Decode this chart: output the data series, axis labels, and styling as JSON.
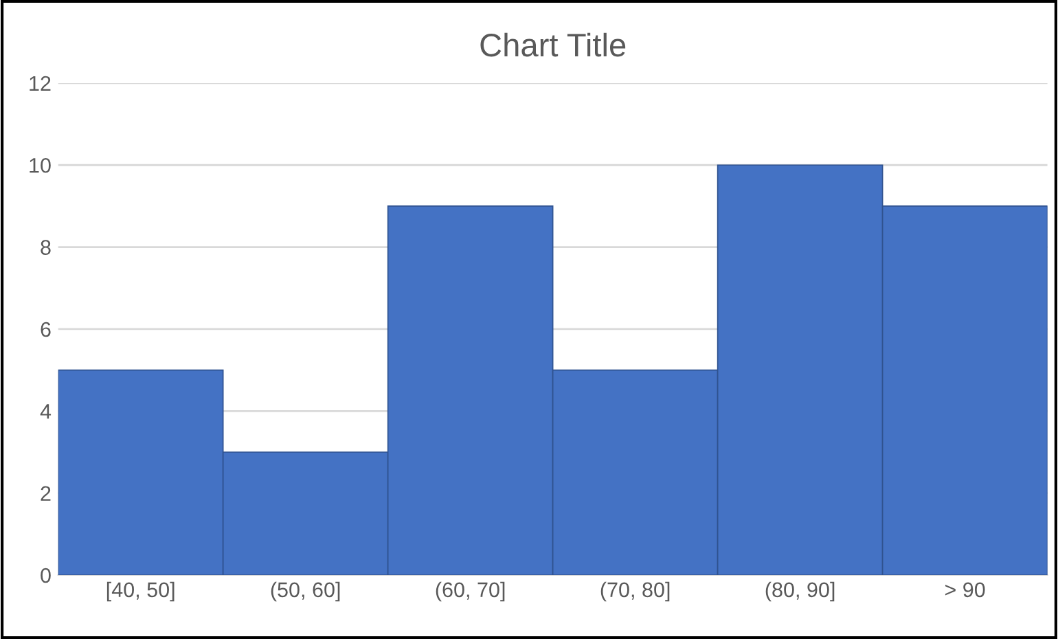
{
  "chart_data": {
    "type": "bar",
    "title": "Chart Title",
    "categories": [
      "[40, 50]",
      "(50, 60]",
      "(60, 70]",
      "(70, 80]",
      "(80, 90]",
      "> 90"
    ],
    "values": [
      5,
      3,
      9,
      5,
      10,
      9
    ],
    "color": "#4472c4",
    "ylim": [
      0,
      12
    ],
    "yticks": [
      0,
      2,
      4,
      6,
      8,
      10,
      12
    ],
    "grid": "y",
    "legend": false
  }
}
